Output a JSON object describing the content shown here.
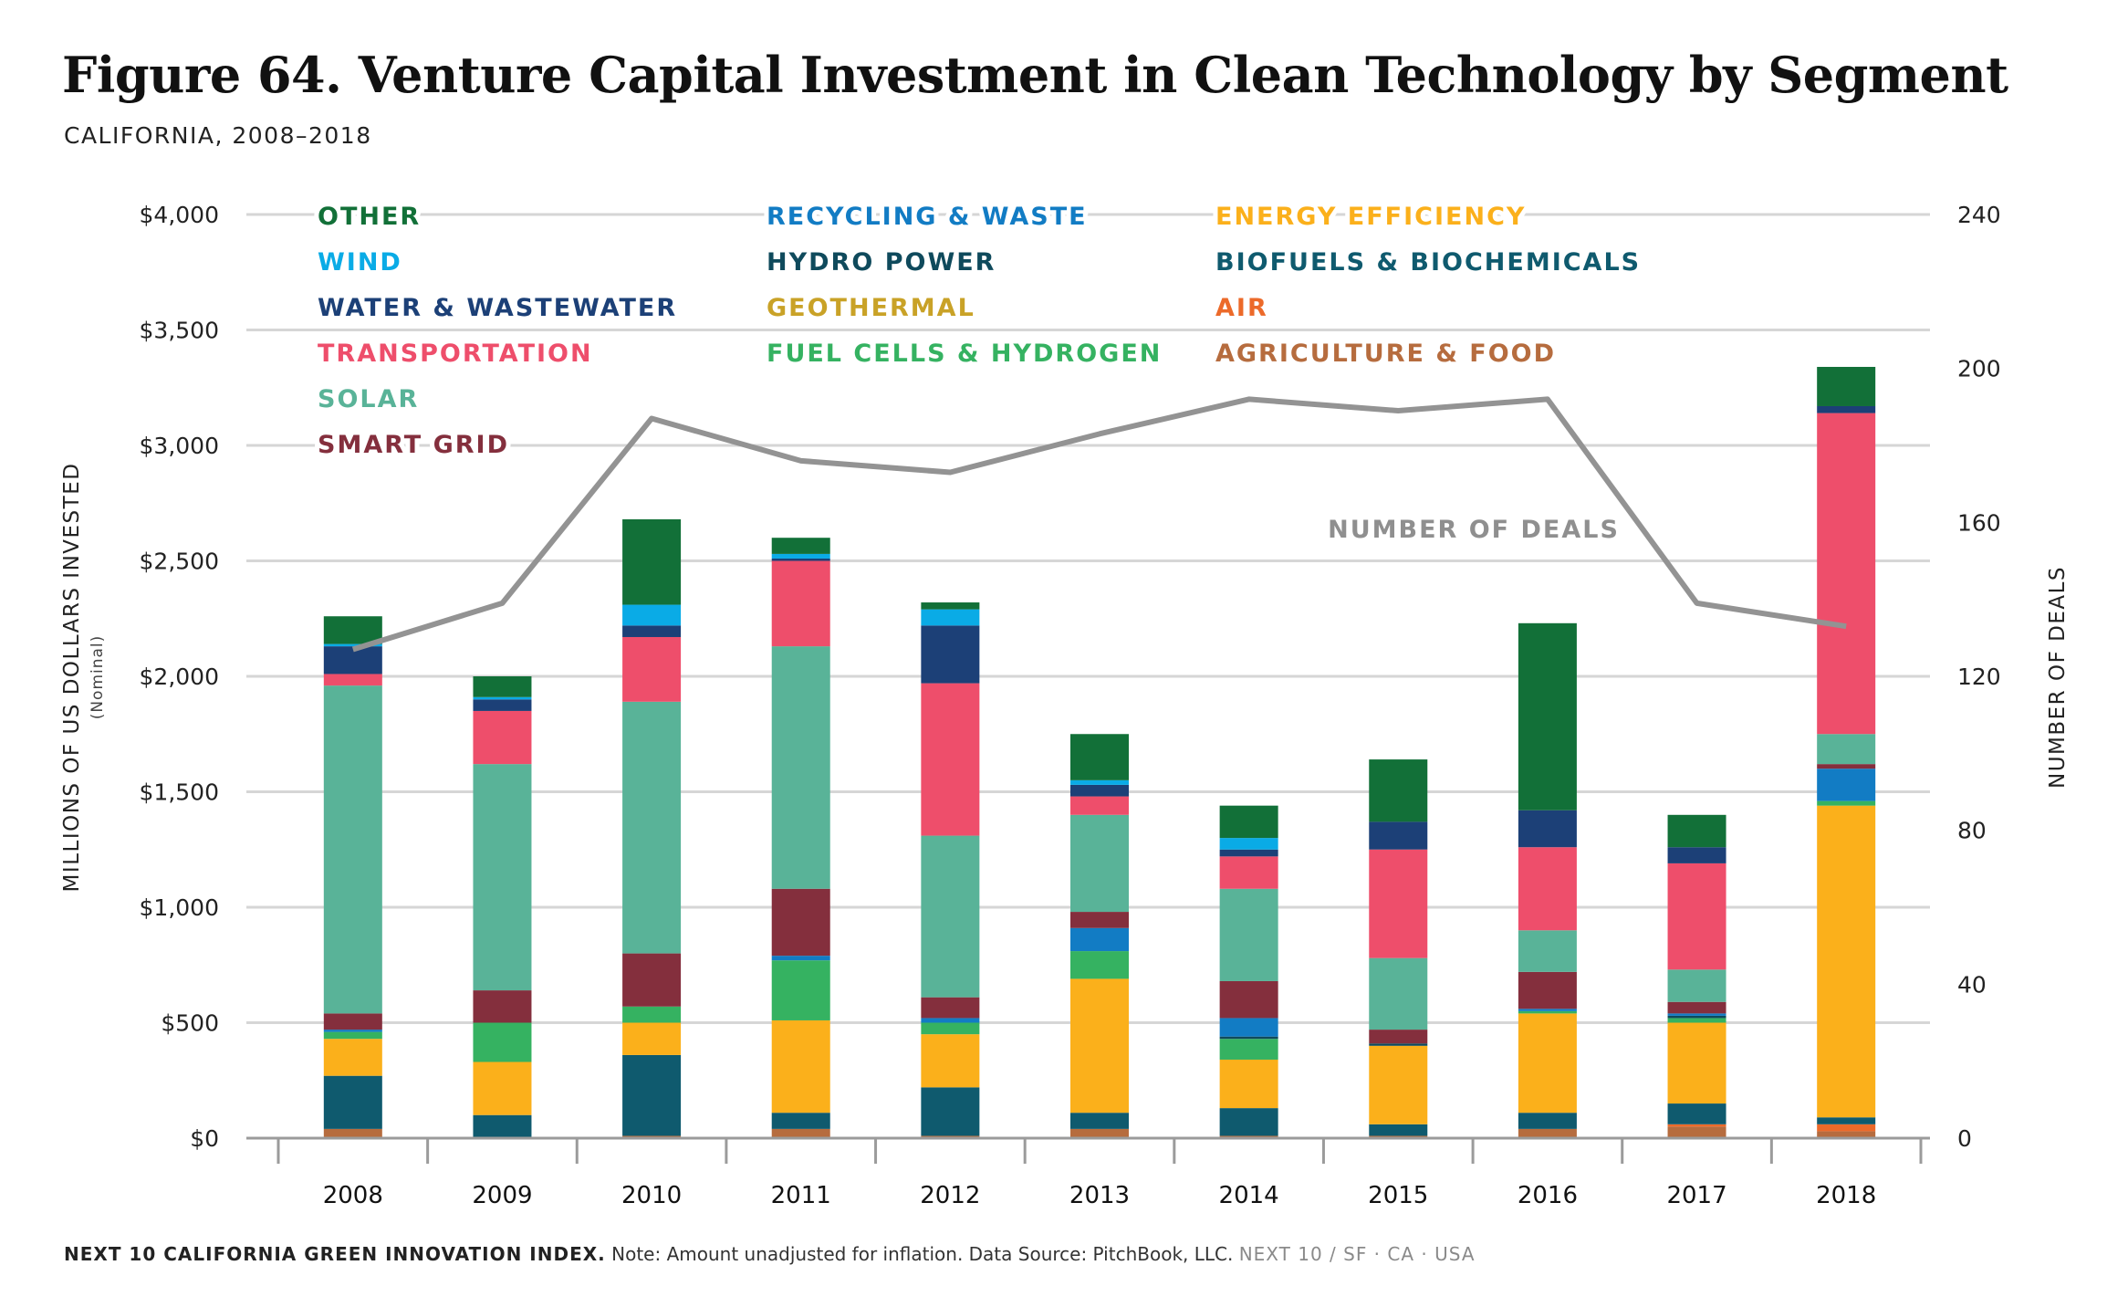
{
  "title": "Figure 64. Venture Capital Investment in Clean Technology by Segment",
  "subtitle": "CALIFORNIA, 2008–2018",
  "footer": {
    "source_label": "NEXT 10 CALIFORNIA GREEN INNOVATION INDEX.",
    "note": "Note: Amount unadjusted for inflation. Data Source: PitchBook, LLC.",
    "brand": "NEXT 10  /  SF · CA · USA"
  },
  "chart_data": {
    "type": "bar",
    "stacked": true,
    "categories": [
      "2008",
      "2009",
      "2010",
      "2011",
      "2012",
      "2013",
      "2014",
      "2015",
      "2016",
      "2017",
      "2018"
    ],
    "ylabel": "MILLIONS OF US DOLLARS INVESTED",
    "ylabel_sub": "(Nominal)",
    "y2label": "NUMBER OF DEALS",
    "ylim": [
      0,
      4000
    ],
    "y2lim": [
      0,
      240
    ],
    "yticks": [
      0,
      500,
      1000,
      1500,
      2000,
      2500,
      3000,
      3500,
      4000
    ],
    "ytick_labels": [
      "$0",
      "$500",
      "$1,000",
      "$1,500",
      "$2,000",
      "$2,500",
      "$3,000",
      "$3,500",
      "$4,000"
    ],
    "y2ticks": [
      0,
      40,
      80,
      120,
      160,
      200,
      240
    ],
    "y2tick_labels": [
      "0",
      "40",
      "80",
      "120",
      "160",
      "200",
      "240"
    ],
    "grid": true,
    "legend_placement": "top-left",
    "series": [
      {
        "name": "AGRICULTURE & FOOD",
        "color": "#b66c3e",
        "values": [
          40,
          0,
          10,
          40,
          10,
          40,
          10,
          10,
          40,
          50,
          30
        ]
      },
      {
        "name": "AIR",
        "color": "#ec6a2a",
        "values": [
          0,
          0,
          0,
          0,
          0,
          0,
          0,
          0,
          0,
          10,
          30
        ]
      },
      {
        "name": "BIOFUELS & BIOCHEMICALS",
        "color": "#0f5a6e",
        "values": [
          230,
          100,
          350,
          70,
          210,
          70,
          120,
          50,
          70,
          90,
          30
        ]
      },
      {
        "name": "ENERGY EFFICIENCY",
        "color": "#fbb01b",
        "values": [
          160,
          230,
          140,
          400,
          230,
          580,
          210,
          340,
          430,
          350,
          1350
        ]
      },
      {
        "name": "FUEL CELLS & HYDROGEN",
        "color": "#35b261",
        "values": [
          30,
          170,
          70,
          260,
          50,
          120,
          90,
          0,
          10,
          20,
          20
        ]
      },
      {
        "name": "GEOTHERMAL",
        "color": "#c9a227",
        "values": [
          0,
          0,
          0,
          0,
          0,
          0,
          0,
          0,
          0,
          0,
          0
        ]
      },
      {
        "name": "HYDRO POWER",
        "color": "#0f4a5c",
        "values": [
          0,
          0,
          0,
          0,
          0,
          0,
          10,
          10,
          0,
          10,
          0
        ]
      },
      {
        "name": "RECYCLING & WASTE",
        "color": "#127cc4",
        "values": [
          10,
          0,
          0,
          20,
          20,
          100,
          80,
          0,
          10,
          10,
          140
        ]
      },
      {
        "name": "SMART GRID",
        "color": "#842f3d",
        "values": [
          70,
          140,
          230,
          290,
          90,
          70,
          160,
          60,
          160,
          50,
          20
        ]
      },
      {
        "name": "SOLAR",
        "color": "#59b398",
        "values": [
          1420,
          980,
          1090,
          1050,
          700,
          420,
          400,
          310,
          180,
          140,
          130
        ]
      },
      {
        "name": "TRANSPORTATION",
        "color": "#ee4e6b",
        "values": [
          50,
          230,
          280,
          370,
          660,
          80,
          140,
          470,
          360,
          460,
          1390
        ]
      },
      {
        "name": "WATER & WASTEWATER",
        "color": "#1c4077",
        "values": [
          120,
          50,
          50,
          10,
          250,
          50,
          30,
          120,
          160,
          70,
          30
        ]
      },
      {
        "name": "WIND",
        "color": "#0aabe6",
        "values": [
          10,
          10,
          90,
          20,
          70,
          20,
          50,
          0,
          0,
          0,
          0
        ]
      },
      {
        "name": "OTHER",
        "color": "#127038",
        "values": [
          120,
          90,
          370,
          70,
          30,
          200,
          140,
          270,
          810,
          140,
          170
        ]
      }
    ],
    "line": {
      "name": "NUMBER OF DEALS",
      "color": "#939393",
      "axis": "right",
      "values": [
        127,
        139,
        187,
        176,
        173,
        183,
        192,
        189,
        192,
        139,
        133
      ]
    },
    "legend_order": [
      "OTHER",
      "RECYCLING & WASTE",
      "ENERGY EFFICIENCY",
      "WIND",
      "HYDRO POWER",
      "BIOFUELS & BIOCHEMICALS",
      "WATER & WASTEWATER",
      "GEOTHERMAL",
      "AIR",
      "TRANSPORTATION",
      "FUEL CELLS & HYDROGEN",
      "AGRICULTURE & FOOD",
      "SOLAR",
      "SMART GRID"
    ]
  }
}
